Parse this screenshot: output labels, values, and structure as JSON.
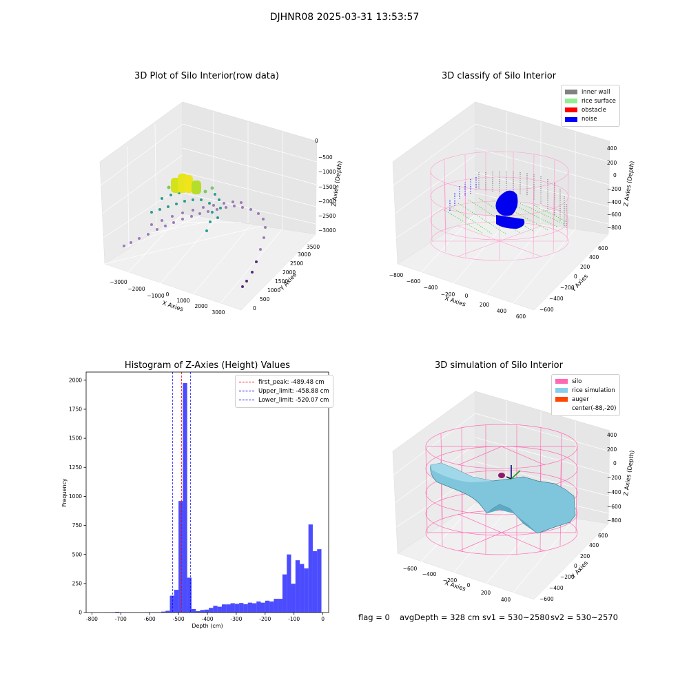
{
  "suptitle": "DJHNR08 2025-03-31 13:53:57",
  "panels": {
    "raw": {
      "title": "3D Plot of Silo Interior(row data)",
      "xlabel": "X Axies",
      "ylabel": "Y Axies",
      "zlabel": "Z Axies (Depth)",
      "xticks": [
        "−3000",
        "−2000",
        "−1000",
        "0",
        "1000",
        "2000",
        "3000"
      ],
      "yticks": [
        "0",
        "500",
        "1000",
        "1500",
        "2000",
        "2500",
        "3000",
        "3500"
      ],
      "zticks": [
        "0",
        "−500",
        "−1000",
        "−1500",
        "−2000",
        "−2500",
        "−3000"
      ]
    },
    "classify": {
      "title": "3D classify of Silo Interior",
      "xlabel": "X Axies",
      "ylabel": "Y Axies",
      "zlabel": "Z Axies (Depth)",
      "xticks": [
        "−800",
        "−600",
        "−400",
        "−200",
        "0",
        "200",
        "400",
        "600"
      ],
      "yticks": [
        "−600",
        "−400",
        "−200",
        "0",
        "200",
        "400",
        "600"
      ],
      "zticks": [
        "400",
        "200",
        "0",
        "−200",
        "−400",
        "−600",
        "−800"
      ],
      "legend": [
        {
          "label": "inner wall",
          "color": "#808080"
        },
        {
          "label": "rice surface",
          "color": "#90ee90"
        },
        {
          "label": "obstacle",
          "color": "#ff0000"
        },
        {
          "label": "noise",
          "color": "#0000ff"
        }
      ]
    },
    "simulation": {
      "title": "3D simulation of Silo Interior",
      "xlabel": "X Axies",
      "ylabel": "Y Axies",
      "zlabel": "Z Axies (Depth)",
      "xticks": [
        "−600",
        "−400",
        "−200",
        "0",
        "200",
        "400"
      ],
      "yticks": [
        "−600",
        "−400",
        "−200",
        "0",
        "200",
        "400",
        "600"
      ],
      "zticks": [
        "400",
        "200",
        "0",
        "−200",
        "−400",
        "−600",
        "−800"
      ],
      "legend": [
        {
          "label": "silo",
          "color": "#ff69b4"
        },
        {
          "label": "rice simulation",
          "color": "#87ceeb"
        },
        {
          "label": "auger",
          "color": "#ff4500"
        },
        {
          "label": "center(-88,-20)",
          "color": ""
        }
      ]
    }
  },
  "footer": {
    "flag": "flag = 0",
    "avg_depth": "avgDepth = 328 cm",
    "sv1": "sv1 = 530~2580",
    "sv2": "sv2 = 530~2570"
  },
  "chart_data": {
    "type": "bar",
    "title": "Histogram of Z-Axies (Height) Values",
    "xlabel": "Depth (cm)",
    "ylabel": "Frequency",
    "xlim": [
      -820,
      20
    ],
    "ylim": [
      0,
      2070
    ],
    "xticks": [
      -800,
      -700,
      -600,
      -500,
      -400,
      -300,
      -200,
      -100,
      0
    ],
    "yticks": [
      0,
      250,
      500,
      750,
      1000,
      1250,
      1500,
      1750,
      2000
    ],
    "bar_color": "#0000ff",
    "bins": [
      {
        "x0": -760,
        "x1": -720,
        "value": 1
      },
      {
        "x0": -720,
        "x1": -705,
        "value": 6
      },
      {
        "x0": -705,
        "x1": -620,
        "value": 1
      },
      {
        "x0": -620,
        "x1": -590,
        "value": 2
      },
      {
        "x0": -590,
        "x1": -560,
        "value": 3
      },
      {
        "x0": -560,
        "x1": -545,
        "value": 8
      },
      {
        "x0": -545,
        "x1": -530,
        "value": 15
      },
      {
        "x0": -530,
        "x1": -515,
        "value": 145
      },
      {
        "x0": -515,
        "x1": -500,
        "value": 195
      },
      {
        "x0": -500,
        "x1": -485,
        "value": 960
      },
      {
        "x0": -485,
        "x1": -470,
        "value": 1975
      },
      {
        "x0": -470,
        "x1": -455,
        "value": 300
      },
      {
        "x0": -455,
        "x1": -440,
        "value": 30
      },
      {
        "x0": -440,
        "x1": -425,
        "value": 12
      },
      {
        "x0": -425,
        "x1": -410,
        "value": 22
      },
      {
        "x0": -410,
        "x1": -395,
        "value": 25
      },
      {
        "x0": -395,
        "x1": -380,
        "value": 40
      },
      {
        "x0": -380,
        "x1": -365,
        "value": 58
      },
      {
        "x0": -365,
        "x1": -350,
        "value": 50
      },
      {
        "x0": -350,
        "x1": -335,
        "value": 70
      },
      {
        "x0": -335,
        "x1": -320,
        "value": 70
      },
      {
        "x0": -320,
        "x1": -305,
        "value": 80
      },
      {
        "x0": -305,
        "x1": -290,
        "value": 75
      },
      {
        "x0": -290,
        "x1": -275,
        "value": 82
      },
      {
        "x0": -275,
        "x1": -260,
        "value": 72
      },
      {
        "x0": -260,
        "x1": -245,
        "value": 85
      },
      {
        "x0": -245,
        "x1": -230,
        "value": 80
      },
      {
        "x0": -230,
        "x1": -215,
        "value": 95
      },
      {
        "x0": -215,
        "x1": -200,
        "value": 85
      },
      {
        "x0": -200,
        "x1": -185,
        "value": 102
      },
      {
        "x0": -185,
        "x1": -170,
        "value": 95
      },
      {
        "x0": -170,
        "x1": -155,
        "value": 118
      },
      {
        "x0": -155,
        "x1": -140,
        "value": 118
      },
      {
        "x0": -140,
        "x1": -125,
        "value": 328
      },
      {
        "x0": -125,
        "x1": -110,
        "value": 500
      },
      {
        "x0": -110,
        "x1": -95,
        "value": 248
      },
      {
        "x0": -95,
        "x1": -80,
        "value": 450
      },
      {
        "x0": -80,
        "x1": -65,
        "value": 418
      },
      {
        "x0": -65,
        "x1": -50,
        "value": 380
      },
      {
        "x0": -50,
        "x1": -35,
        "value": 758
      },
      {
        "x0": -35,
        "x1": -20,
        "value": 528
      },
      {
        "x0": -20,
        "x1": -5,
        "value": 545
      }
    ],
    "vlines": [
      {
        "label": "first_peak: -489.48 cm",
        "x": -489.48,
        "color": "#ff0000"
      },
      {
        "label": "Upper_limit: -458.88 cm",
        "x": -458.88,
        "color": "#0000ff"
      },
      {
        "label": "Lower_limit: -520.07 cm",
        "x": -520.07,
        "color": "#0000ff"
      }
    ]
  }
}
